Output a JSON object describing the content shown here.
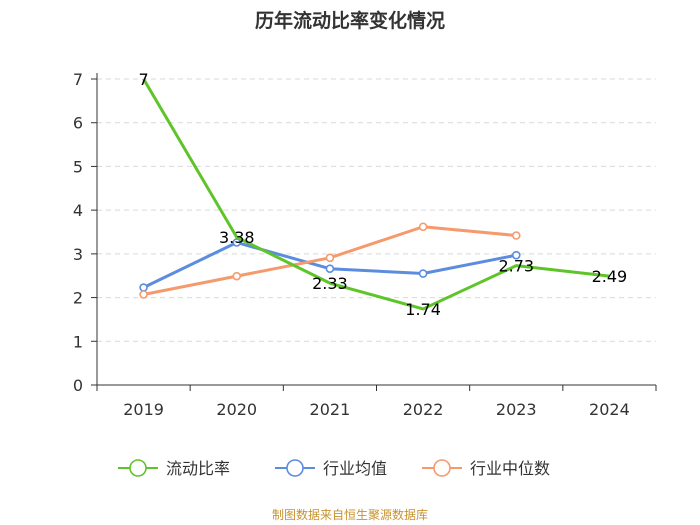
{
  "chart_data": {
    "type": "line",
    "title": "历年流动比率变化情况",
    "categories": [
      "2019",
      "2020",
      "2021",
      "2022",
      "2023",
      "2024"
    ],
    "ylim": [
      0,
      7
    ],
    "yticks": [
      0,
      1,
      2,
      3,
      4,
      5,
      6,
      7
    ],
    "grid": true,
    "legend_position": "bottom",
    "series": [
      {
        "name": "流动比率",
        "color": "#5fc42a",
        "values": [
          7,
          3.38,
          2.33,
          1.74,
          2.73,
          2.49
        ],
        "labels": [
          "7",
          "3.38",
          "2.33",
          "1.74",
          "2.73",
          "2.49"
        ],
        "show_markers": false
      },
      {
        "name": "行业均值",
        "color": "#5b8ce0",
        "values": [
          2.23,
          3.26,
          2.66,
          2.55,
          2.97,
          null
        ],
        "show_markers": true
      },
      {
        "name": "行业中位数",
        "color": "#f59a6c",
        "values": [
          2.07,
          2.49,
          2.91,
          3.62,
          3.42,
          null
        ],
        "show_markers": true
      }
    ]
  },
  "source": "制图数据来自恒生聚源数据库"
}
